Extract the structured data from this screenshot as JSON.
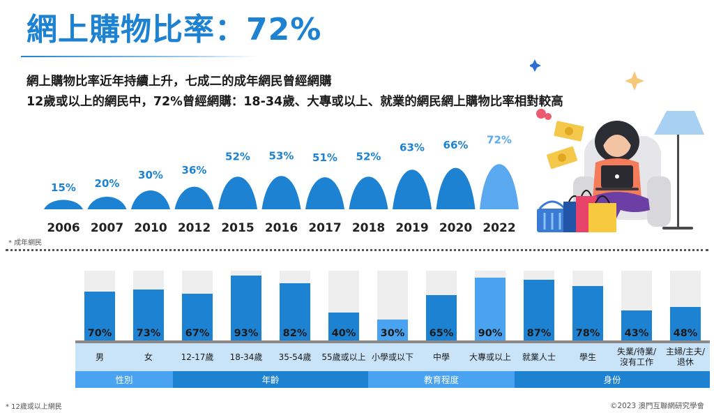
{
  "header": {
    "title": "網上購物比率：72%",
    "subtitle_line1": "網上購物比率近年持續上升，七成二的成年網民曾經網購",
    "subtitle_line2": "12歲或以上的網民中，72%曾經網購：18-34歲、大專或以上、就業的網民網上購物比率相對較高"
  },
  "notes": {
    "top": "* 成年網民",
    "bottom": "* 12歲或以上網民",
    "credit": "©2023 澳門互聯網研究學會"
  },
  "colors": {
    "title": "#1e82d2",
    "mound": "#1e82d2",
    "mound_latest": "#5aa8f0",
    "bar": "#1e82d2",
    "bar_light": "#4aa3f0",
    "track": "#eeeeee",
    "label_band": "#c9e3f8",
    "group_band": "#1e82d2",
    "group_band_light": "#4aa3f0",
    "baseline": "#8a8a8a"
  },
  "chart_data": [
    {
      "type": "area",
      "title": "",
      "categories": [
        "2006",
        "2007",
        "2010",
        "2012",
        "2015",
        "2016",
        "2017",
        "2018",
        "2019",
        "2020",
        "2022"
      ],
      "values": [
        15,
        20,
        30,
        36,
        52,
        53,
        51,
        52,
        63,
        66,
        72
      ],
      "labels": [
        "15%",
        "20%",
        "30%",
        "36%",
        "52%",
        "53%",
        "51%",
        "52%",
        "63%",
        "66%",
        "72%"
      ],
      "unit": "%"
    },
    {
      "type": "bar",
      "title": "",
      "categories": [
        "男",
        "女",
        "12-17歲",
        "18-34歲",
        "35-54歲",
        "55歲或以上",
        "小學或以下",
        "中學",
        "大專或以上",
        "就業人士",
        "學生",
        "失業/待業/\n沒有工作",
        "主婦/主夫/\n退休"
      ],
      "values": [
        70,
        73,
        67,
        93,
        82,
        40,
        30,
        65,
        90,
        87,
        78,
        43,
        48
      ],
      "labels": [
        "70%",
        "73%",
        "67%",
        "93%",
        "82%",
        "40%",
        "30%",
        "65%",
        "90%",
        "87%",
        "78%",
        "43%",
        "48%"
      ],
      "groups": [
        {
          "name": "性別",
          "count": 2
        },
        {
          "name": "年齡",
          "count": 4
        },
        {
          "name": "教育程度",
          "count": 3
        },
        {
          "name": "身份",
          "count": 4
        }
      ],
      "ylim": [
        0,
        100
      ]
    }
  ]
}
